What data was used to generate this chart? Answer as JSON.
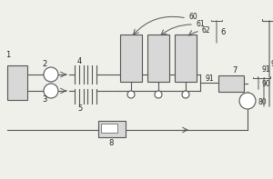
{
  "bg_color": "#f0f0eb",
  "line_color": "#555555",
  "lw": 0.8,
  "fig_width": 3.0,
  "fig_height": 1.97,
  "dpi": 100
}
